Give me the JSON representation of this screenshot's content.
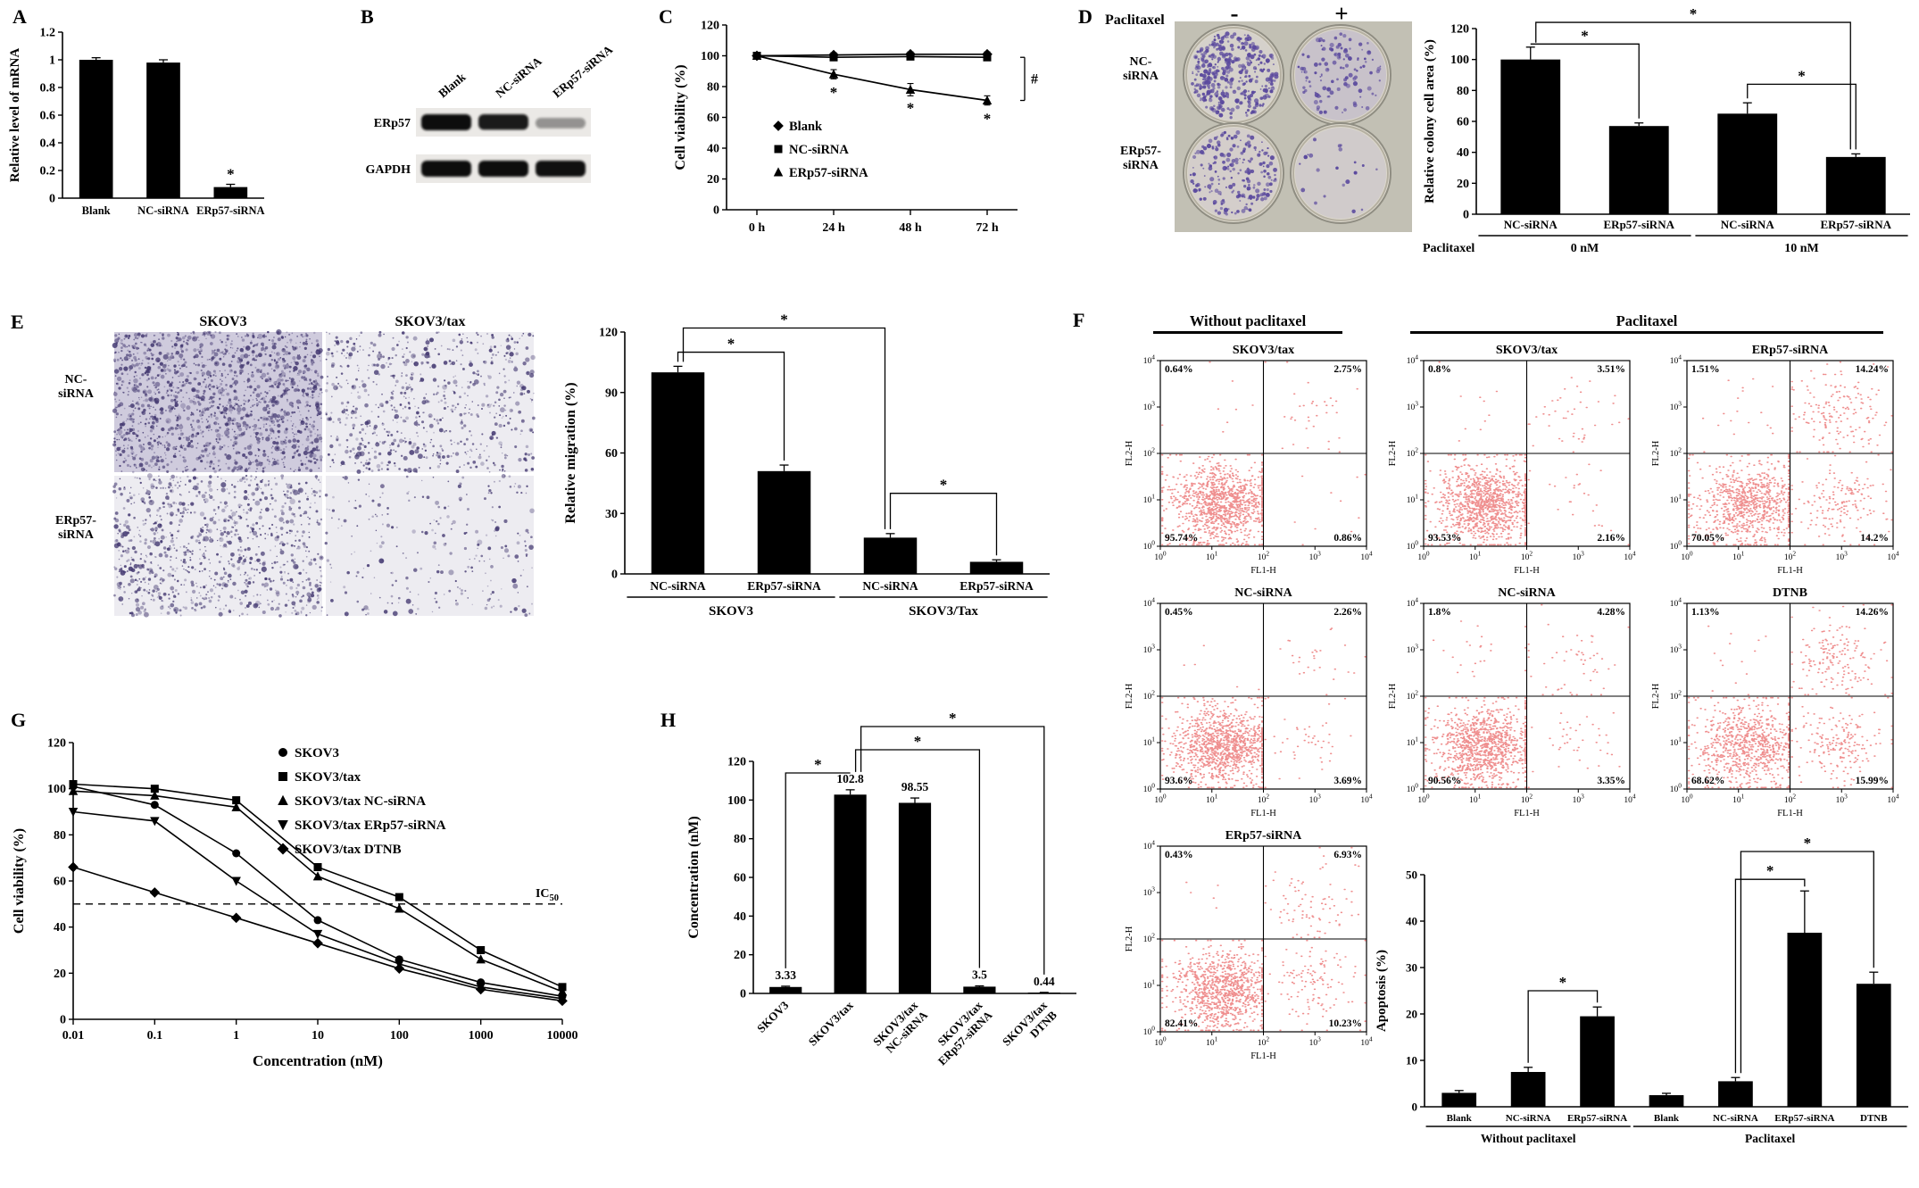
{
  "colors": {
    "ink": "#000000",
    "flow_dot": "#e01f1f",
    "colony_dot": "#5b4a9e",
    "migration_dot": "#453a72",
    "dish_bg": "#c2c0b4",
    "dish_fill": "#dcd8cc",
    "dish_tint": "#9d8fc6",
    "blot_bg": "#ebe9e6",
    "band": "#111111"
  },
  "panels": {
    "A": {
      "label": "A",
      "chart": {
        "type": "bar",
        "ylabel": "Relative level of mRNA",
        "ylim": [
          0,
          1.2
        ],
        "yticks": [
          0,
          0.2,
          0.4,
          0.6,
          0.8,
          1,
          1.2
        ],
        "categories": [
          "Blank",
          "NC-siRNA",
          "ERp57-siRNA"
        ],
        "values": [
          1.0,
          0.98,
          0.08
        ],
        "errors": [
          0.015,
          0.02,
          0.02
        ],
        "point_labels": [
          "",
          "",
          "*"
        ]
      }
    },
    "B": {
      "label": "B",
      "lanes": [
        "Blank",
        "NC-siRNA",
        "ERp57-siRNA"
      ],
      "rows": [
        {
          "name": "ERp57",
          "intensities": [
            1,
            0.92,
            0.22
          ]
        },
        {
          "name": "GAPDH",
          "intensities": [
            1,
            1,
            0.98
          ]
        }
      ]
    },
    "C": {
      "label": "C",
      "chart": {
        "type": "line",
        "ylabel": "Cell viability (%)",
        "ylim": [
          0,
          120
        ],
        "yticks": [
          0,
          20,
          40,
          60,
          80,
          100,
          120
        ],
        "x": [
          "0 h",
          "24 h",
          "48 h",
          "72 h"
        ],
        "series": [
          {
            "name": "Blank",
            "marker": "diamond",
            "values": [
              100,
              100.5,
              101,
              101
            ],
            "errors": [
              1.5,
              1.5,
              1.5,
              1.5
            ]
          },
          {
            "name": "NC-siRNA",
            "marker": "square",
            "values": [
              100,
              99,
              99.5,
              99
            ],
            "errors": [
              1.5,
              1.5,
              1.5,
              1.5
            ]
          },
          {
            "name": "ERp57-siRNA",
            "marker": "triangle",
            "values": [
              100,
              88,
              78,
              71
            ],
            "errors": [
              2,
              3,
              4,
              3
            ],
            "point_labels": [
              "",
              "*",
              "*",
              "*"
            ]
          }
        ],
        "right_annotation": {
          "label": "#",
          "from": 99,
          "to": 71
        }
      }
    },
    "D": {
      "label": "D",
      "images": {
        "treatment_label": "Paclitaxel",
        "col_symbols": [
          "-",
          "+"
        ],
        "row_labels": [
          "NC-\nsiRNA",
          "ERp57-\nsiRNA"
        ],
        "colony_density": [
          [
            0.92,
            0.28
          ],
          [
            0.5,
            0.05
          ]
        ],
        "tint": [
          [
            0.1,
            0.3
          ],
          [
            0.12,
            0.18
          ]
        ]
      },
      "chart": {
        "type": "bar",
        "ylabel": "Relative colony cell area (%)",
        "ylim": [
          0,
          120
        ],
        "yticks": [
          0,
          20,
          40,
          60,
          80,
          100,
          120
        ],
        "categories": [
          "NC-siRNA",
          "ERp57-siRNA",
          "NC-siRNA",
          "ERp57-siRNA"
        ],
        "values": [
          100,
          57,
          65,
          37
        ],
        "errors": [
          8,
          2,
          7,
          2
        ],
        "groups": [
          {
            "label": "0 nM",
            "from": 0,
            "to": 1
          },
          {
            "label": "10 nM",
            "from": 2,
            "to": 3
          }
        ],
        "axis_row_label": "Paclitaxel",
        "brackets": [
          {
            "a": 2,
            "b": 3,
            "y": 84,
            "label": "*"
          },
          {
            "a": 0,
            "b": 1,
            "y": 110,
            "label": "*"
          },
          {
            "a": 0,
            "b": 3,
            "y": 124,
            "label": "*"
          }
        ]
      }
    },
    "E": {
      "label": "E",
      "images": {
        "col_labels": [
          "SKOV3",
          "SKOV3/tax"
        ],
        "row_labels": [
          "NC-\nsiRNA",
          "ERp57-\nsiRNA"
        ],
        "density": [
          [
            1.0,
            0.42
          ],
          [
            0.6,
            0.13
          ]
        ]
      },
      "chart": {
        "type": "bar",
        "ylabel": "Relative migration (%)",
        "ylim": [
          0,
          120
        ],
        "yticks": [
          0,
          30,
          60,
          90,
          120
        ],
        "categories": [
          "NC-siRNA",
          "ERp57-siRNA",
          "NC-siRNA",
          "ERp57-siRNA"
        ],
        "values": [
          100,
          51,
          18,
          6
        ],
        "errors": [
          3,
          3,
          2,
          1
        ],
        "groups": [
          {
            "label": "SKOV3",
            "from": 0,
            "to": 1
          },
          {
            "label": "SKOV3/Tax",
            "from": 2,
            "to": 3
          }
        ],
        "brackets": [
          {
            "a": 2,
            "b": 3,
            "y": 40,
            "label": "*"
          },
          {
            "a": 0,
            "b": 1,
            "y": 110,
            "label": "*"
          },
          {
            "a": 0,
            "b": 2,
            "y": 122,
            "label": "*"
          }
        ]
      }
    },
    "F": {
      "label": "F",
      "group_headers": [
        "Without paclitaxel",
        "Paclitaxel"
      ],
      "axes": {
        "x": "FL1-H",
        "y": "FL2-H",
        "log_base": "10",
        "log_exponents": [
          "0",
          "1",
          "2",
          "3",
          "4"
        ]
      },
      "plots": [
        {
          "title": "SKOV3/tax",
          "ul": "0.64%",
          "ur": "2.75%",
          "ll": "95.74%",
          "lr": "0.86%"
        },
        {
          "title": "SKOV3/tax",
          "ul": "0.8%",
          "ur": "3.51%",
          "ll": "93.53%",
          "lr": "2.16%"
        },
        {
          "title": "ERp57-siRNA",
          "ul": "1.51%",
          "ur": "14.24%",
          "ll": "70.05%",
          "lr": "14.2%"
        },
        {
          "title": "NC-siRNA",
          "ul": "0.45%",
          "ur": "2.26%",
          "ll": "93.6%",
          "lr": "3.69%"
        },
        {
          "title": "NC-siRNA",
          "ul": "1.8%",
          "ur": "4.28%",
          "ll": "90.56%",
          "lr": "3.35%"
        },
        {
          "title": "DTNB",
          "ul": "1.13%",
          "ur": "14.26%",
          "ll": "68.62%",
          "lr": "15.99%"
        },
        {
          "title": "ERp57-siRNA",
          "ul": "0.43%",
          "ur": "6.93%",
          "ll": "82.41%",
          "lr": "10.23%"
        }
      ],
      "apoptosis_chart": {
        "type": "bar",
        "ylabel": "Apoptosis (%)",
        "ylim": [
          0,
          50
        ],
        "yticks": [
          0,
          10,
          20,
          30,
          40,
          50
        ],
        "categories": [
          "Blank",
          "NC-siRNA",
          "ERp57-siRNA",
          "Blank",
          "NC-siRNA",
          "ERp57-siRNA",
          "DTNB"
        ],
        "values": [
          3,
          7.5,
          19.5,
          2.5,
          5.5,
          37.5,
          26.5
        ],
        "errors": [
          0.5,
          1,
          2,
          0.4,
          0.8,
          9,
          2.5
        ],
        "groups": [
          {
            "label": "Without paclitaxel",
            "from": 0,
            "to": 2
          },
          {
            "label": "Paclitaxel",
            "from": 3,
            "to": 6
          }
        ],
        "brackets": [
          {
            "a": 1,
            "b": 2,
            "y": 25,
            "label": "*"
          },
          {
            "a": 4,
            "b": 5,
            "y": 49,
            "label": "*"
          },
          {
            "a": 4,
            "b": 6,
            "y": 55,
            "label": "*"
          }
        ]
      }
    },
    "G": {
      "label": "G",
      "chart": {
        "type": "scatter-log",
        "xlabel": "Concentration (nM)",
        "ylabel": "Cell viability (%)",
        "ylim": [
          0,
          120
        ],
        "yticks": [
          0,
          20,
          40,
          60,
          80,
          100,
          120
        ],
        "xticks": [
          "0.01",
          "0.1",
          "1",
          "10",
          "100",
          "1000",
          "10000"
        ],
        "ic50": {
          "text": "IC",
          "sub": "50",
          "y": 50
        },
        "series": [
          {
            "name": "SKOV3",
            "marker": "circle",
            "values": [
              101,
              93,
              72,
              43,
              26,
              16,
              10
            ]
          },
          {
            "name": "SKOV3/tax",
            "marker": "square",
            "values": [
              102,
              100,
              95,
              66,
              53,
              30,
              14
            ]
          },
          {
            "name": "SKOV3/tax NC-siRNA",
            "marker": "triangle",
            "values": [
              99,
              97,
              92,
              62,
              48,
              26,
              12
            ]
          },
          {
            "name": "SKOV3/tax ERp57-siRNA",
            "marker": "triangle-down",
            "values": [
              90,
              86,
              60,
              37,
              24,
              14,
              9
            ]
          },
          {
            "name": "SKOV3/tax DTNB",
            "marker": "diamond",
            "values": [
              66,
              55,
              44,
              33,
              22,
              13,
              8
            ]
          }
        ]
      }
    },
    "H": {
      "label": "H",
      "chart": {
        "type": "bar",
        "ylabel": "Concentration (nM)",
        "ylim": [
          0,
          120
        ],
        "yticks": [
          0,
          20,
          40,
          60,
          80,
          100,
          120
        ],
        "categories": [
          "SKOV3",
          "SKOV3/tax",
          "SKOV3/tax\nNC-siRNA",
          "SKOV3/tax\nERp57-siRNA",
          "SKOV3/tax\nDTNB"
        ],
        "values": [
          3.33,
          102.8,
          98.55,
          3.5,
          0.44
        ],
        "errors": [
          0.4,
          2.5,
          2.5,
          0.4,
          0.1
        ],
        "value_labels": [
          "3.33",
          "102.8",
          "98.55",
          "3.5",
          "0.44"
        ],
        "brackets": [
          {
            "a": 0,
            "b": 1,
            "y": 114,
            "label": "*"
          },
          {
            "a": 1,
            "b": 3,
            "y": 126,
            "label": "*"
          },
          {
            "a": 1,
            "b": 4,
            "y": 138,
            "label": "*"
          }
        ]
      }
    }
  }
}
